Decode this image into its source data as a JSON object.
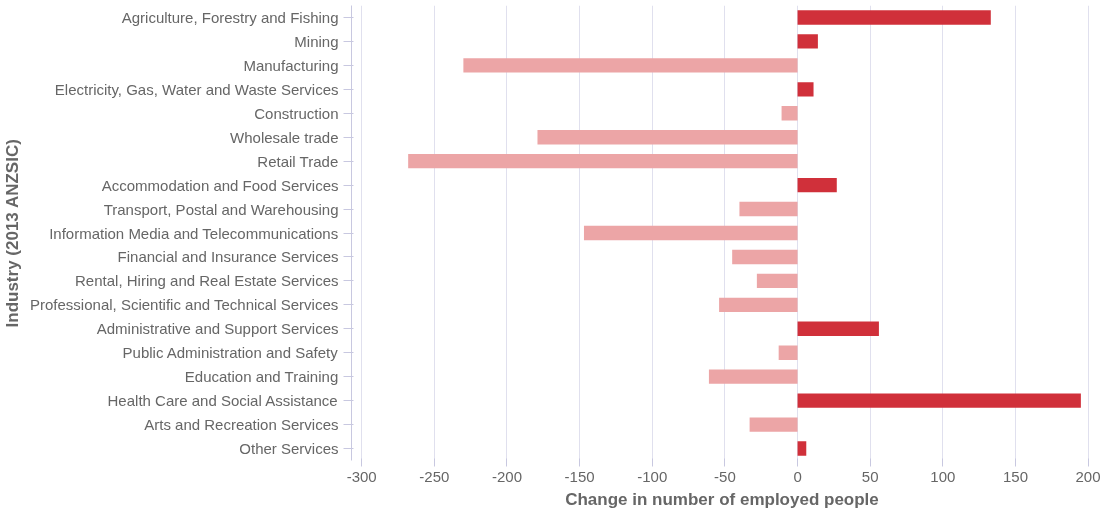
{
  "chart_data": {
    "type": "bar",
    "orientation": "horizontal",
    "xlabel": "Change in number of employed people",
    "ylabel": "Industry (2013 ANZSIC)",
    "categories": [
      "Agriculture, Forestry and Fishing",
      "Mining",
      "Manufacturing",
      "Electricity, Gas, Water and Waste Services",
      "Construction",
      "Wholesale trade",
      "Retail Trade",
      "Accommodation and Food Services",
      "Transport, Postal and Warehousing",
      "Information Media and Telecommunications",
      "Financial and Insurance Services",
      "Rental, Hiring and Real Estate Services",
      "Professional, Scientific and Technical Services",
      "Administrative and Support Services",
      "Public Administration and Safety",
      "Education and Training",
      "Health Care and Social Assistance",
      "Arts and Recreation Services",
      "Other Services"
    ],
    "values": [
      133,
      14,
      -230,
      11,
      -11,
      -179,
      -268,
      27,
      -40,
      -147,
      -45,
      -28,
      -54,
      56,
      -13,
      -61,
      195,
      -33,
      6
    ],
    "colors": [
      "#d0303a",
      "#d0303a",
      "#eca5a6",
      "#d0303a",
      "#eca5a6",
      "#eca5a6",
      "#eca5a6",
      "#d0303a",
      "#eca5a6",
      "#eca5a6",
      "#eca5a6",
      "#eca5a6",
      "#eca5a6",
      "#d0303a",
      "#eca5a6",
      "#eca5a6",
      "#d0303a",
      "#eca5a6",
      "#d0303a"
    ],
    "xlim": [
      -307,
      203
    ],
    "xticks": [
      -300,
      -250,
      -200,
      -150,
      -100,
      -50,
      0,
      50,
      100,
      150,
      200
    ],
    "grid": "x"
  }
}
